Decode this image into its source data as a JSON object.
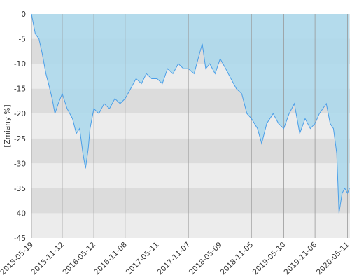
{
  "chart_data": {
    "type": "line",
    "y_label": "[Zmiany %]",
    "x": [
      "2015-05-19",
      "2015-06-10",
      "2015-07-01",
      "2015-07-20",
      "2015-08-10",
      "2015-08-25",
      "2015-09-15",
      "2015-10-01",
      "2015-10-20",
      "2015-11-12",
      "2015-12-10",
      "2016-01-10",
      "2016-02-01",
      "2016-02-20",
      "2016-03-10",
      "2016-03-25",
      "2016-04-10",
      "2016-04-20",
      "2016-05-12",
      "2016-06-10",
      "2016-07-10",
      "2016-08-10",
      "2016-09-10",
      "2016-10-10",
      "2016-11-08",
      "2016-12-10",
      "2017-01-10",
      "2017-02-10",
      "2017-03-10",
      "2017-04-10",
      "2017-05-11",
      "2017-06-10",
      "2017-07-10",
      "2017-08-10",
      "2017-09-10",
      "2017-10-10",
      "2017-11-07",
      "2017-12-10",
      "2018-01-10",
      "2018-01-26",
      "2018-02-15",
      "2018-03-10",
      "2018-04-10",
      "2018-05-09",
      "2018-06-10",
      "2018-07-10",
      "2018-08-10",
      "2018-09-10",
      "2018-10-10",
      "2018-11-05",
      "2018-12-10",
      "2019-01-03",
      "2019-02-01",
      "2019-03-10",
      "2019-04-10",
      "2019-05-10",
      "2019-06-10",
      "2019-07-10",
      "2019-08-10",
      "2019-09-10",
      "2019-10-10",
      "2019-11-06",
      "2019-12-01",
      "2020-01-10",
      "2020-02-01",
      "2020-02-20",
      "2020-03-10",
      "2020-03-23",
      "2020-04-10",
      "2020-04-25",
      "2020-05-11",
      "2020-05-22"
    ],
    "series": [
      {
        "name": "Zmiany",
        "color": "#4a9ee8",
        "values": [
          0,
          -4,
          -5,
          -8,
          -12,
          -14,
          -17,
          -20,
          -18,
          -16,
          -19,
          -21,
          -24,
          -23,
          -28,
          -31,
          -27,
          -23,
          -19,
          -20,
          -18,
          -19,
          -17,
          -18,
          -17,
          -15,
          -13,
          -14,
          -12,
          -13,
          -13,
          -14,
          -11,
          -12,
          -10,
          -11,
          -11,
          -12,
          -8,
          -6,
          -11,
          -10,
          -12,
          -9,
          -11,
          -13,
          -15,
          -16,
          -20,
          -21,
          -23,
          -26,
          -22,
          -20,
          -22,
          -23,
          -20,
          -18,
          -24,
          -21,
          -23,
          -22,
          -20,
          -18,
          -22,
          -23,
          -28,
          -40,
          -36,
          -35,
          -36,
          -35
        ]
      }
    ],
    "fill_color": "#aad8ec",
    "xlim": [
      "2015-05-19",
      "2020-05-25"
    ],
    "xticks": [
      "2015-05-19",
      "2015-11-12",
      "2016-05-12",
      "2016-11-08",
      "2017-05-11",
      "2017-11-07",
      "2018-05-09",
      "2018-11-05",
      "2019-05-10",
      "2019-11-06",
      "2020-05-11"
    ],
    "ylim": [
      -45,
      0
    ],
    "yticks": [
      0,
      -5,
      -10,
      -15,
      -20,
      -25,
      -30,
      -35,
      -40,
      -45
    ],
    "band_colors": [
      "#ececec",
      "#dcdcdc"
    ]
  }
}
